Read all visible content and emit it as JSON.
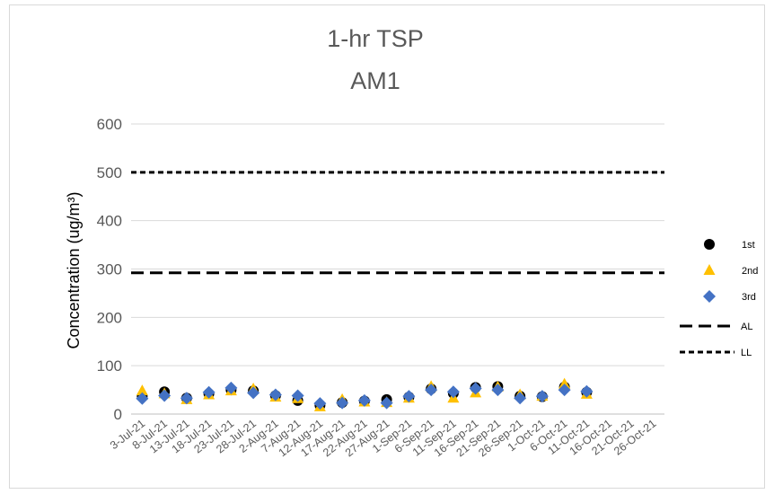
{
  "chart_data": {
    "type": "scatter",
    "title": [
      "1-hr TSP",
      "AM1"
    ],
    "ylabel": "Concentration (ug/m³)",
    "xlabel": "",
    "ylim": [
      0,
      600
    ],
    "yticks": [
      0,
      100,
      200,
      300,
      400,
      500,
      600
    ],
    "grid": true,
    "legend_position": "right",
    "categories": [
      "3-Jul-21",
      "8-Jul-21",
      "13-Jul-21",
      "18-Jul-21",
      "23-Jul-21",
      "28-Jul-21",
      "2-Aug-21",
      "7-Aug-21",
      "12-Aug-21",
      "17-Aug-21",
      "22-Aug-21",
      "27-Aug-21",
      "1-Sep-21",
      "6-Sep-21",
      "11-Sep-21",
      "16-Sep-21",
      "21-Sep-21",
      "26-Sep-21",
      "1-Oct-21",
      "6-Oct-21",
      "11-Oct-21",
      "16-Oct-21",
      "21-Oct-21",
      "26-Oct-21"
    ],
    "series": [
      {
        "name": "1st",
        "marker": "circle",
        "color": "#000000",
        "values": [
          37,
          46,
          33,
          42,
          50,
          48,
          38,
          28,
          18,
          24,
          27,
          30,
          35,
          52,
          43,
          55,
          57,
          37,
          36,
          56,
          45
        ]
      },
      {
        "name": "2nd",
        "marker": "triangle",
        "color": "#FFC000",
        "values": [
          48,
          42,
          30,
          40,
          48,
          52,
          35,
          32,
          15,
          30,
          25,
          24,
          33,
          57,
          33,
          44,
          56,
          40,
          37,
          62,
          41
        ]
      },
      {
        "name": "3rd",
        "marker": "diamond",
        "color": "#4472C4",
        "values": [
          32,
          38,
          33,
          45,
          54,
          44,
          40,
          38,
          22,
          23,
          28,
          23,
          37,
          50,
          46,
          53,
          50,
          33,
          37,
          50,
          47
        ]
      }
    ],
    "reference_lines": [
      {
        "name": "AL",
        "value": 292,
        "style": "long-dash",
        "color": "#000000"
      },
      {
        "name": "LL",
        "value": 500,
        "style": "short-dash",
        "color": "#000000"
      }
    ]
  }
}
